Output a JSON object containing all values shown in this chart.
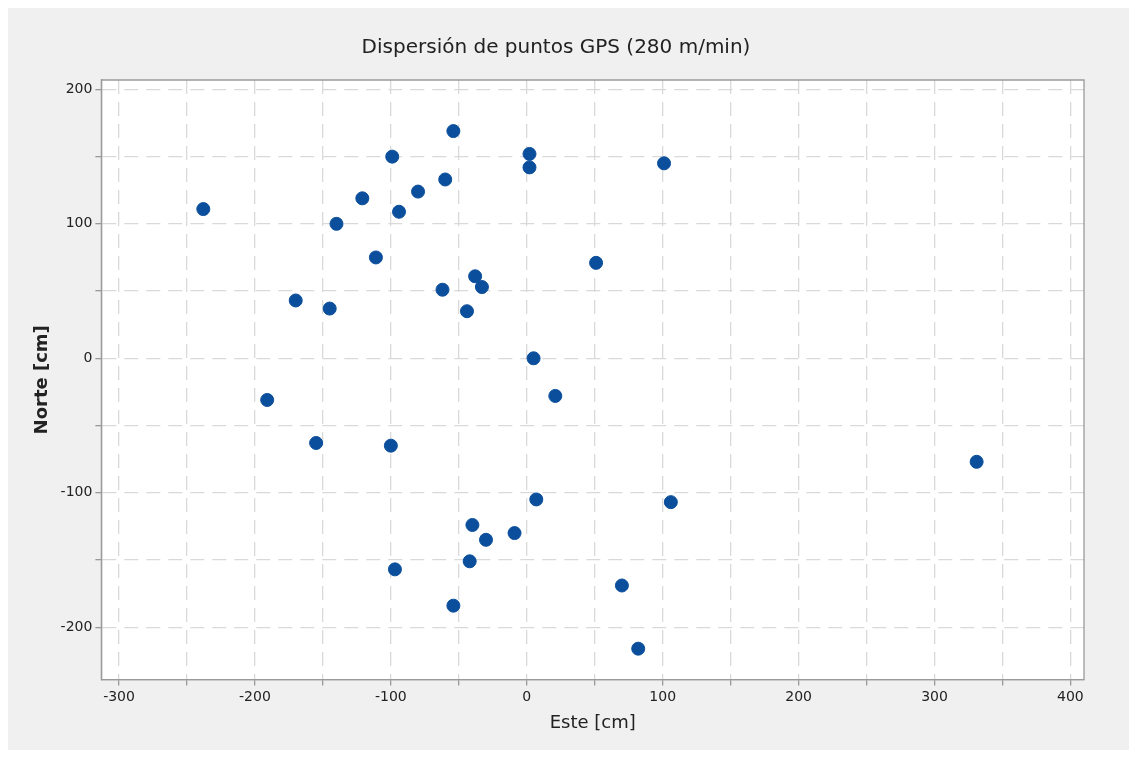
{
  "chart_data": {
    "type": "scatter",
    "title": "Dispersión de puntos GPS (280 m/min)",
    "xlabel": "Este [cm]",
    "ylabel": "Norte [cm]",
    "x": [
      -238,
      -54,
      -99,
      2,
      2,
      101,
      -60,
      -80,
      -121,
      -94,
      -140,
      -111,
      51,
      -38,
      -33,
      -62,
      -170,
      -145,
      -44,
      5,
      21,
      -191,
      -155,
      -100,
      331,
      7,
      106,
      -40,
      -30,
      -9,
      -42,
      -97,
      -54,
      70,
      82
    ],
    "series": [
      {
        "color": "#0b4f9c",
        "values": [
          111,
          169,
          150,
          152,
          142,
          145,
          133,
          124,
          119,
          109,
          100,
          75,
          71,
          61,
          53,
          51,
          43,
          37,
          35,
          0,
          -28,
          -31,
          -63,
          -65,
          -77,
          -105,
          -107,
          -124,
          -135,
          -130,
          -151,
          -157,
          -184,
          -169,
          -216
        ]
      }
    ],
    "xlim": [
      -313,
      410
    ],
    "ylim": [
      -239,
      207
    ],
    "xticks": [
      -300,
      {
        "value": -250,
        "label": null
      },
      -200,
      {
        "value": -150,
        "label": null
      },
      -100,
      {
        "value": -50,
        "label": null
      },
      0,
      {
        "value": 50,
        "label": null
      },
      100,
      {
        "value": 150,
        "label": null
      },
      200,
      {
        "value": 250,
        "label": null
      },
      300,
      {
        "value": 350,
        "label": null
      },
      400
    ],
    "yticks": [
      {
        "value": -200,
        "label": "-200"
      },
      {
        "value": -150,
        "label": null
      },
      {
        "value": -100,
        "label": "-100"
      },
      {
        "value": -50,
        "label": null
      },
      0,
      {
        "value": 50,
        "label": null
      },
      100,
      {
        "value": 150,
        "label": null
      },
      200
    ],
    "grid": true,
    "legend": false,
    "marker": "circle"
  }
}
